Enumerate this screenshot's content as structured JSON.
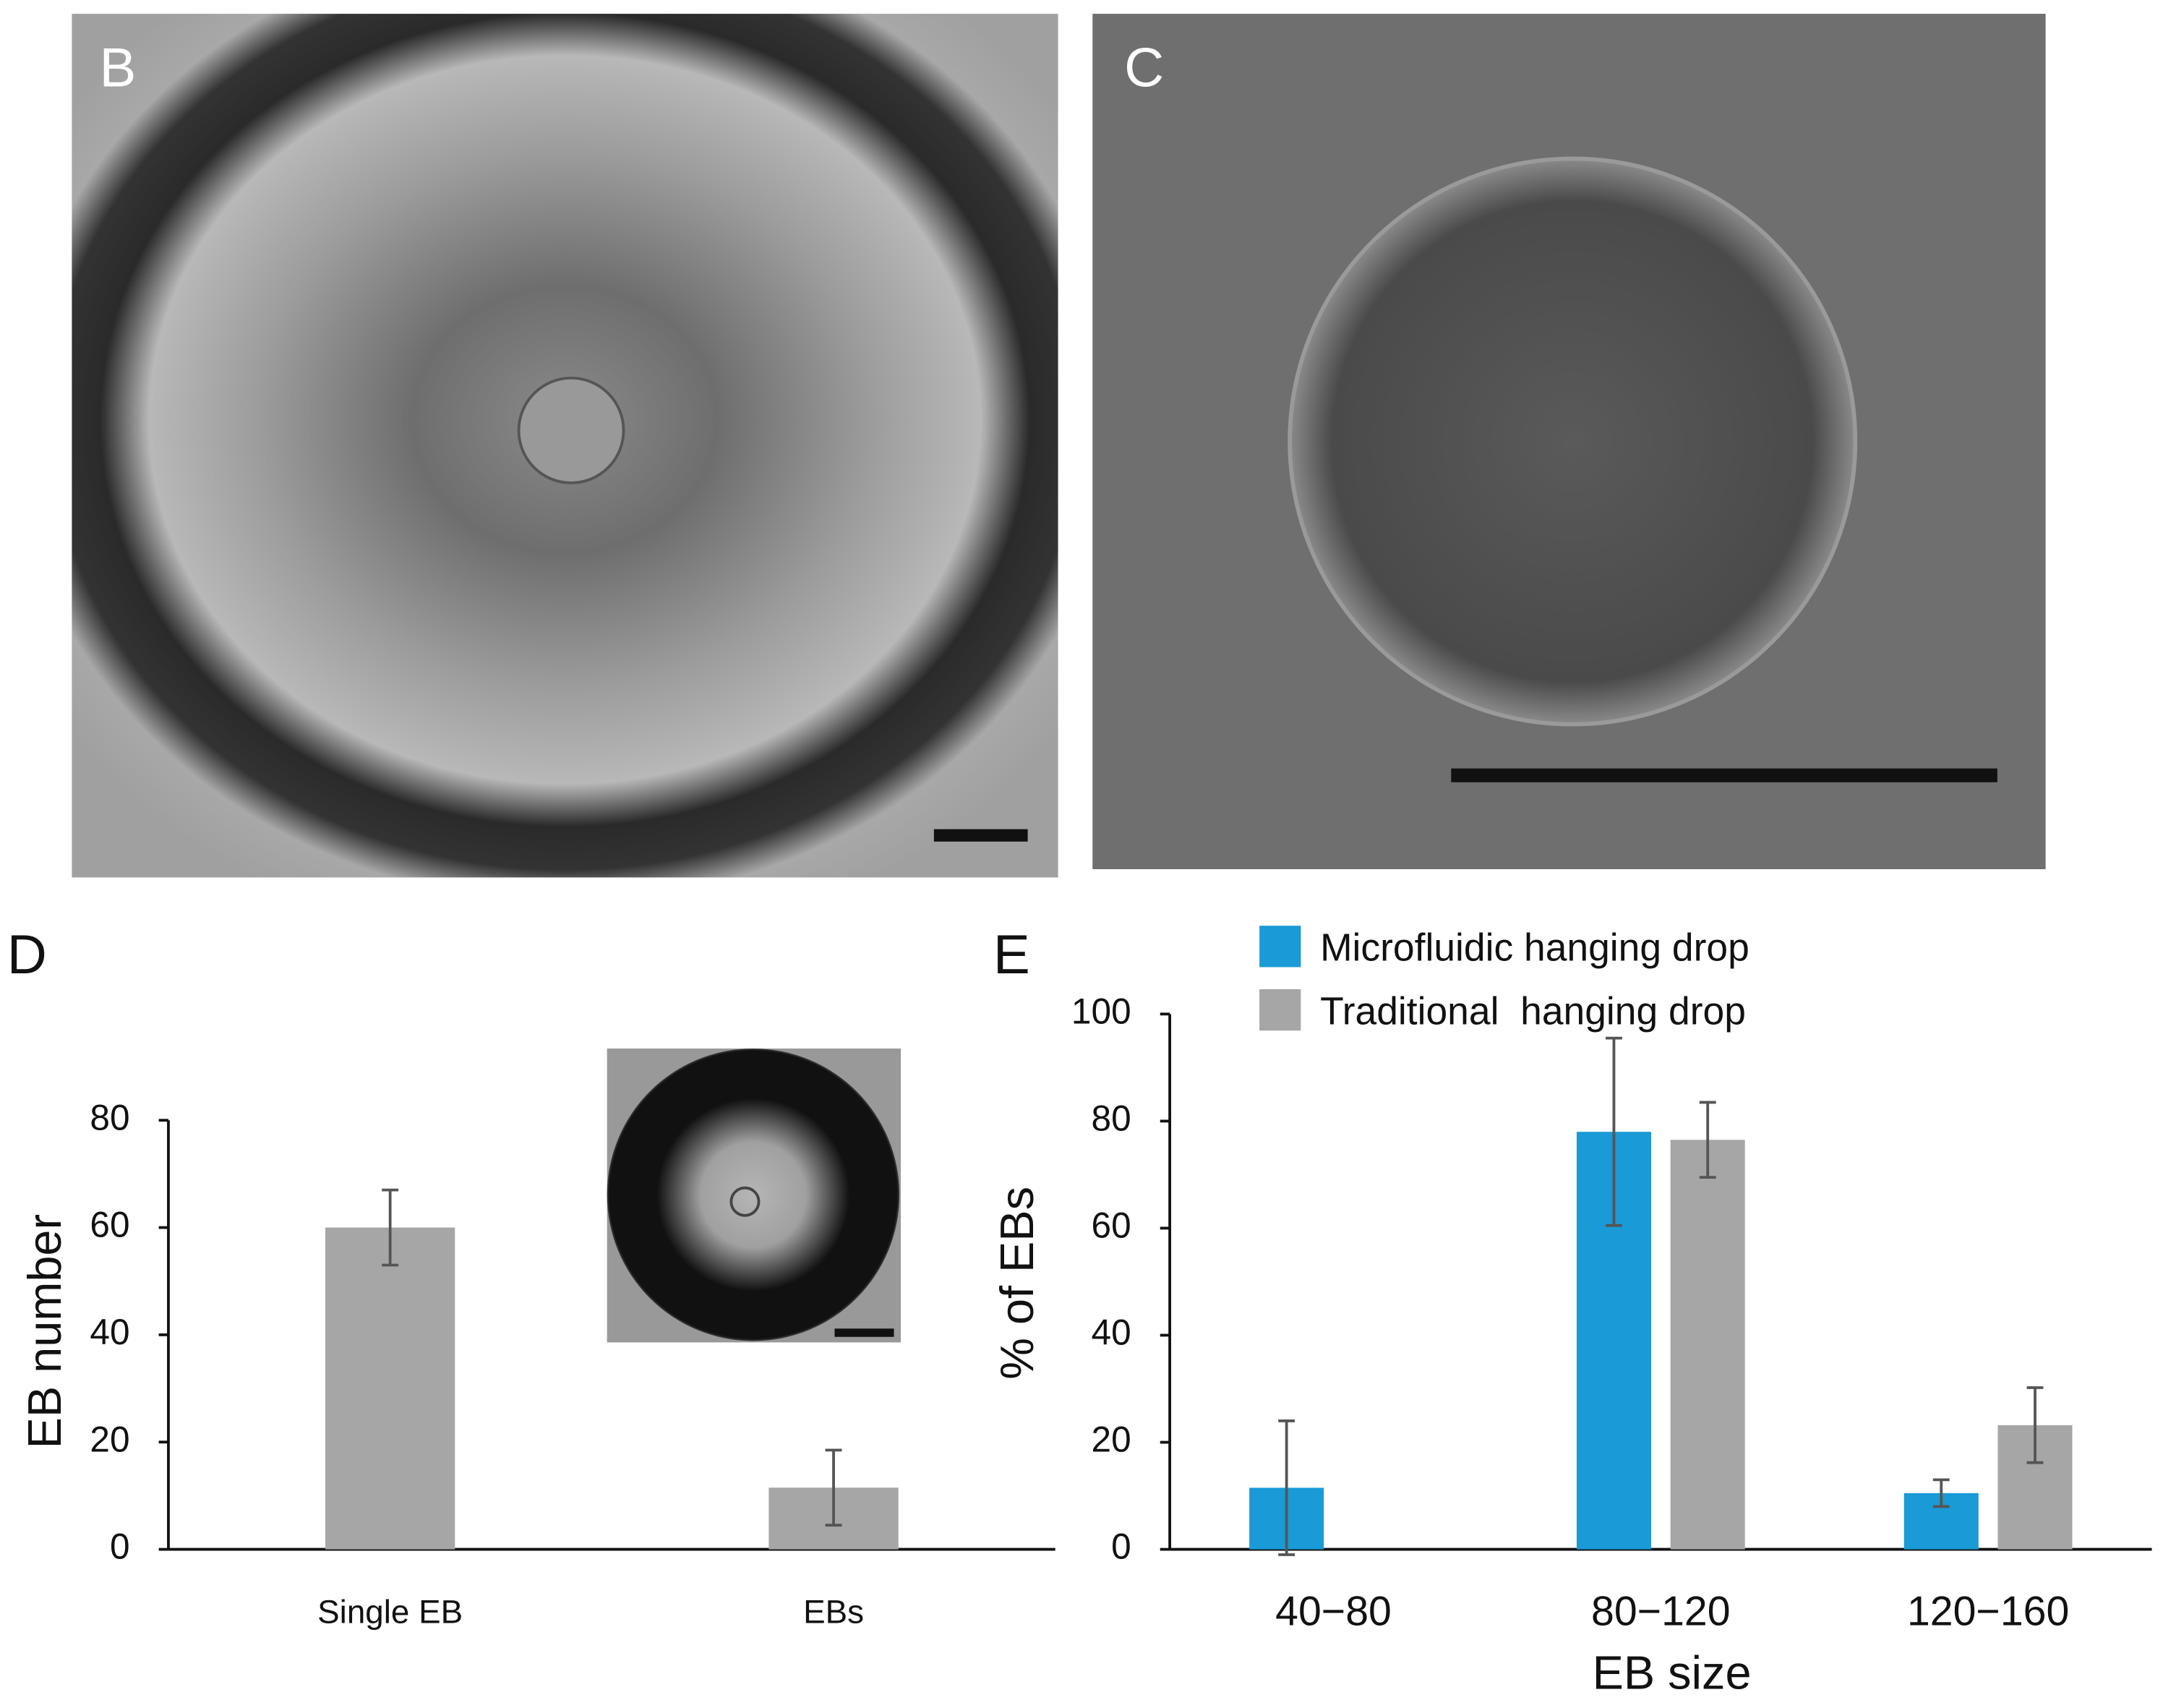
{
  "images": [
    {
      "label": "B"
    },
    {
      "label": "C"
    }
  ],
  "chart_data": [
    {
      "type": "bar",
      "panel": "D",
      "ylabel": "EB number",
      "categories": [
        "Single EB",
        "EBs"
      ],
      "values": [
        60,
        11.5
      ],
      "errors": [
        7,
        7
      ],
      "color": "#a6a6a6",
      "ylim": [
        0,
        80
      ],
      "yticks": [
        0,
        20,
        40,
        60,
        80
      ],
      "grid": false
    },
    {
      "type": "bar",
      "panel": "E",
      "xlabel": "EB size",
      "ylabel": "% of EBs",
      "categories": [
        "40−80",
        "80−120",
        "120−160"
      ],
      "series": [
        {
          "name": "Microfluidic hanging drop",
          "color": "#1a9ad6",
          "values": [
            11.5,
            78,
            10.5
          ],
          "errors": [
            12.5,
            17.5,
            2.5
          ]
        },
        {
          "name": "Traditional  hanging drop",
          "color": "#a6a6a6",
          "values": [
            null,
            76.5,
            23.2
          ],
          "errors": [
            null,
            7,
            7
          ]
        }
      ],
      "ylim": [
        0,
        100
      ],
      "yticks": [
        0,
        20,
        40,
        60,
        80,
        100
      ],
      "grid": false,
      "legend": "top"
    }
  ]
}
